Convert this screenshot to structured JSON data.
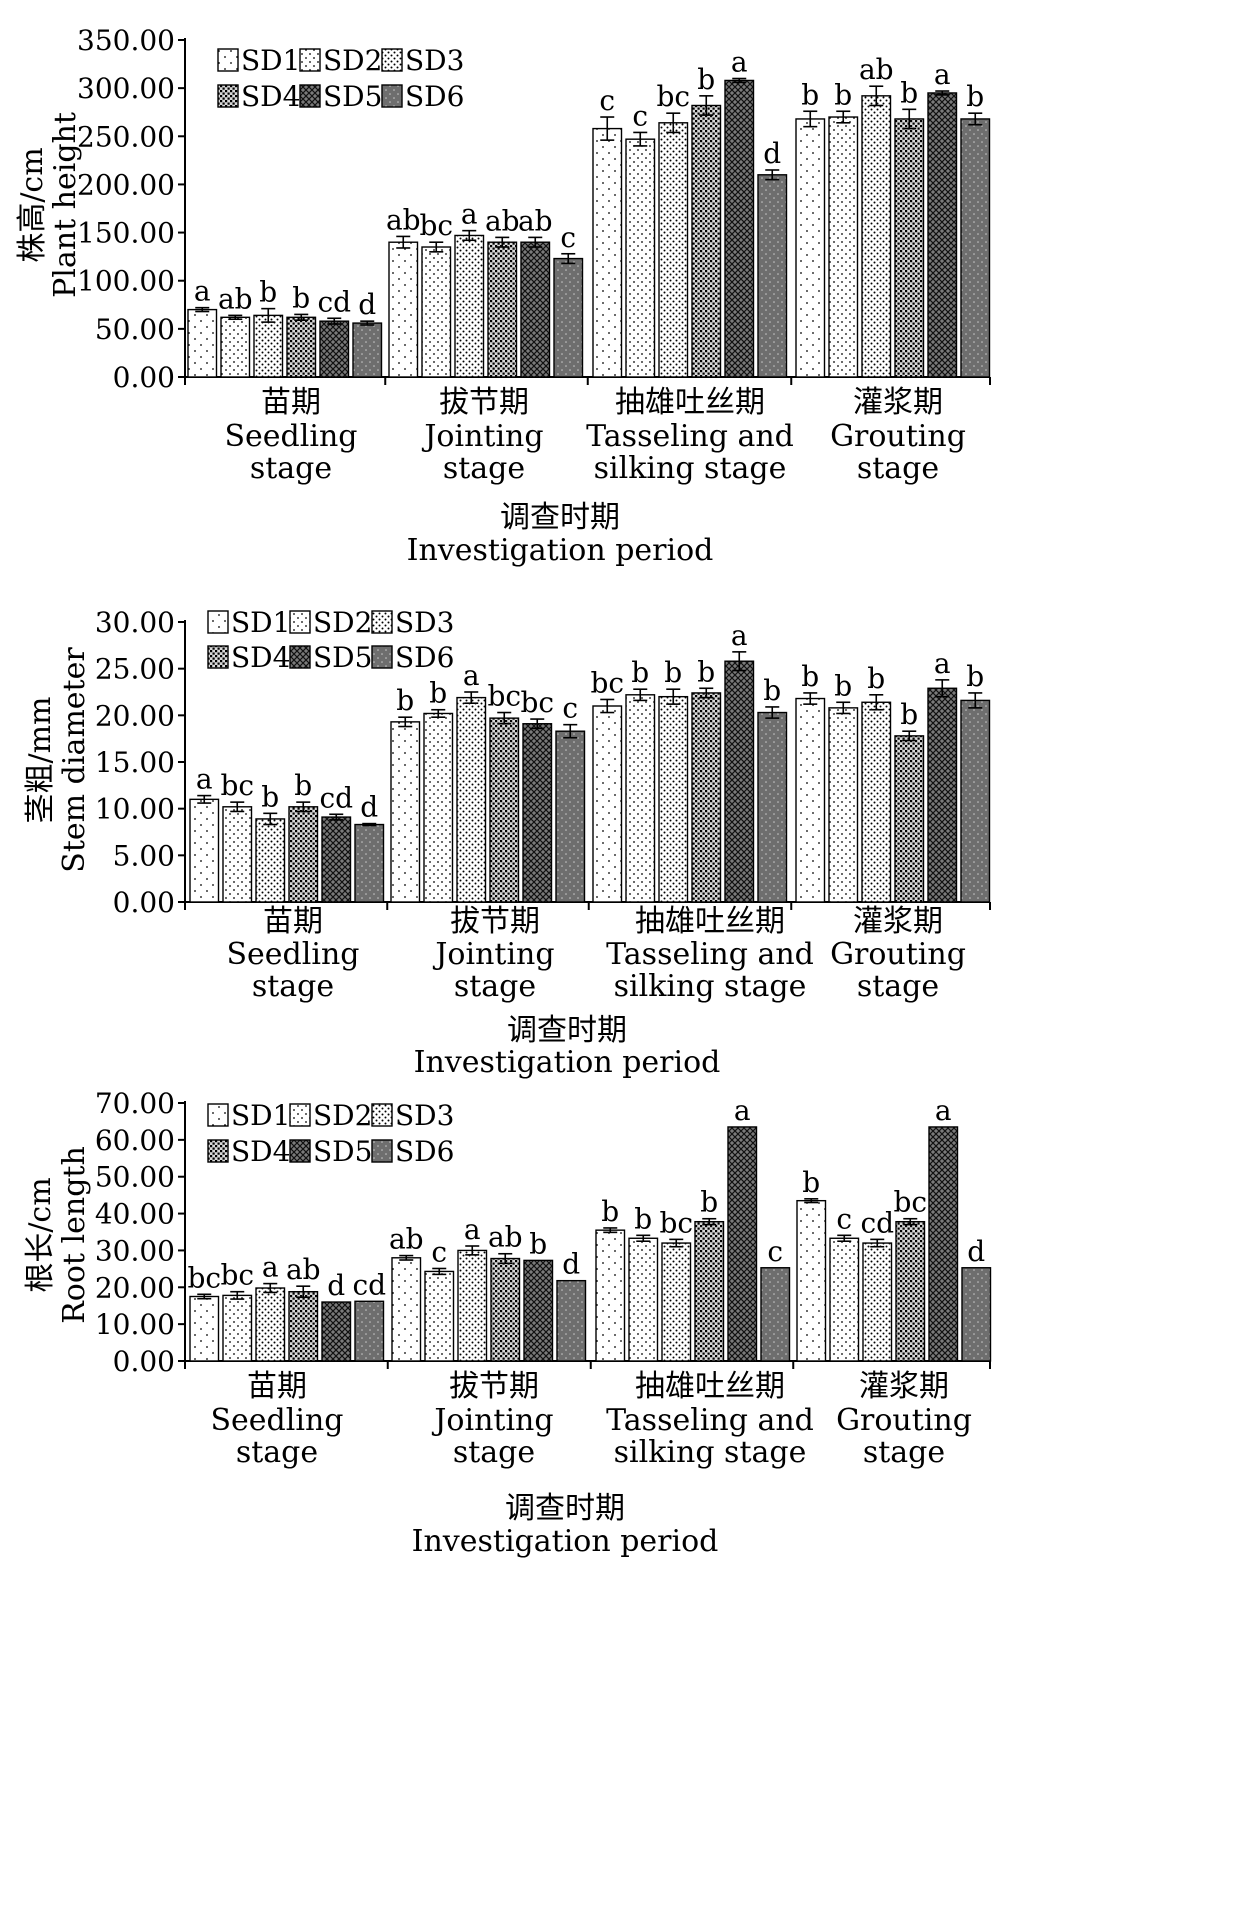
{
  "chart_data": [
    {
      "type": "bar",
      "ylabel_cn": "株高/cm",
      "ylabel_en": "Plant height",
      "xlabel_cn": "调查时期",
      "xlabel_en": "Investigation period",
      "ylim": [
        0,
        350
      ],
      "yticks": [
        "0.00",
        "50.00",
        "100.00",
        "150.00",
        "200.00",
        "250.00",
        "300.00",
        "350.00"
      ],
      "categories": [
        {
          "cn": "苗期",
          "en": [
            "Seedling",
            "stage"
          ]
        },
        {
          "cn": "拔节期",
          "en": [
            "Jointing",
            "stage"
          ]
        },
        {
          "cn": "抽雄吐丝期",
          "en": [
            "Tasseling and",
            "silking stage"
          ]
        },
        {
          "cn": "灌浆期",
          "en": [
            "Grouting",
            "stage"
          ]
        }
      ],
      "series": [
        {
          "name": "SD1",
          "values": [
            70,
            140,
            258,
            268
          ],
          "errors": [
            2,
            6,
            12,
            8
          ],
          "letters": [
            "a",
            "ab",
            "c",
            "b"
          ]
        },
        {
          "name": "SD2",
          "values": [
            62,
            135,
            247,
            270
          ],
          "errors": [
            2,
            5,
            7,
            6
          ],
          "letters": [
            "ab",
            "bc",
            "c",
            "b"
          ]
        },
        {
          "name": "SD3",
          "values": [
            64,
            147,
            264,
            292
          ],
          "errors": [
            7,
            5,
            10,
            10
          ],
          "letters": [
            "b",
            "a",
            "bc",
            "ab"
          ]
        },
        {
          "name": "SD4",
          "values": [
            62,
            140,
            282,
            268
          ],
          "errors": [
            3,
            5,
            10,
            10
          ],
          "letters": [
            "b",
            "ab",
            "b",
            "b"
          ]
        },
        {
          "name": "SD5",
          "values": [
            58,
            140,
            308,
            295
          ],
          "errors": [
            3,
            5,
            2,
            2
          ],
          "letters": [
            "cd",
            "ab",
            "a",
            "a"
          ]
        },
        {
          "name": "SD6",
          "values": [
            56,
            123,
            210,
            268
          ],
          "errors": [
            2,
            5,
            5,
            6
          ],
          "letters": [
            "d",
            "c",
            "d",
            "b"
          ]
        }
      ]
    },
    {
      "type": "bar",
      "ylabel_cn": "茎粗/mm",
      "ylabel_en": "Stem diameter",
      "xlabel_cn": "调查时期",
      "xlabel_en": "Investigation period",
      "ylim": [
        0,
        30
      ],
      "yticks": [
        "0.00",
        "5.00",
        "10.00",
        "15.00",
        "20.00",
        "25.00",
        "30.00"
      ],
      "categories": [
        {
          "cn": "苗期",
          "en": [
            "Seedling",
            "stage"
          ]
        },
        {
          "cn": "拔节期",
          "en": [
            "Jointing",
            "stage"
          ]
        },
        {
          "cn": "抽雄吐丝期",
          "en": [
            "Tasseling and",
            "silking stage"
          ]
        },
        {
          "cn": "灌浆期",
          "en": [
            "Grouting",
            "stage"
          ]
        }
      ],
      "series": [
        {
          "name": "SD1",
          "values": [
            11.0,
            19.3,
            21.0,
            21.8
          ],
          "errors": [
            0.4,
            0.5,
            0.7,
            0.6
          ],
          "letters": [
            "a",
            "b",
            "bc",
            "b"
          ]
        },
        {
          "name": "SD2",
          "values": [
            10.2,
            20.2,
            22.2,
            20.8
          ],
          "errors": [
            0.5,
            0.4,
            0.6,
            0.6
          ],
          "letters": [
            "bc",
            "b",
            "b",
            "b"
          ]
        },
        {
          "name": "SD3",
          "values": [
            8.9,
            21.9,
            22.0,
            21.4
          ],
          "errors": [
            0.6,
            0.6,
            0.8,
            0.8
          ],
          "letters": [
            "b",
            "a",
            "b",
            "b"
          ]
        },
        {
          "name": "SD4",
          "values": [
            10.2,
            19.7,
            22.4,
            17.8
          ],
          "errors": [
            0.5,
            0.6,
            0.5,
            0.5
          ],
          "letters": [
            "b",
            "bc",
            "b",
            "b"
          ]
        },
        {
          "name": "SD5",
          "values": [
            9.1,
            19.1,
            25.8,
            22.9
          ],
          "errors": [
            0.3,
            0.5,
            1.0,
            0.9
          ],
          "letters": [
            "cd",
            "bc",
            "a",
            "a"
          ]
        },
        {
          "name": "SD6",
          "values": [
            8.3,
            18.3,
            20.3,
            21.6
          ],
          "errors": [
            0.1,
            0.7,
            0.6,
            0.8
          ],
          "letters": [
            "d",
            "c",
            "b",
            "b"
          ]
        }
      ]
    },
    {
      "type": "bar",
      "ylabel_cn": "根长/cm",
      "ylabel_en": "Root length",
      "xlabel_cn": "调查时期",
      "xlabel_en": "Investigation period",
      "ylim": [
        0,
        70
      ],
      "yticks": [
        "0.00",
        "10.00",
        "20.00",
        "30.00",
        "40.00",
        "50.00",
        "60.00",
        "70.00"
      ],
      "categories": [
        {
          "cn": "苗期",
          "en": [
            "Seedling",
            "stage"
          ]
        },
        {
          "cn": "拔节期",
          "en": [
            "Jointing",
            "stage"
          ]
        },
        {
          "cn": "抽雄吐丝期",
          "en": [
            "Tasseling and",
            "silking stage"
          ]
        },
        {
          "cn": "灌浆期",
          "en": [
            "Grouting",
            "stage"
          ]
        }
      ],
      "series": [
        {
          "name": "SD1",
          "values": [
            17.5,
            28.0,
            35.5,
            43.5
          ],
          "errors": [
            0.6,
            0.6,
            0.6,
            0.5
          ],
          "letters": [
            "bc",
            "ab",
            "b",
            "b"
          ]
        },
        {
          "name": "SD2",
          "values": [
            17.8,
            24.3,
            33.3,
            33.3
          ],
          "errors": [
            1.0,
            0.8,
            0.8,
            0.8
          ],
          "letters": [
            "bc",
            "c",
            "b",
            "c"
          ]
        },
        {
          "name": "SD3",
          "values": [
            19.8,
            30.0,
            32.0,
            32.0
          ],
          "errors": [
            1.2,
            1.2,
            1.0,
            1.0
          ],
          "letters": [
            "a",
            "a",
            "bc",
            "cd"
          ]
        },
        {
          "name": "SD4",
          "values": [
            18.8,
            27.8,
            37.8,
            37.8
          ],
          "errors": [
            1.5,
            1.3,
            0.8,
            0.8
          ],
          "letters": [
            "ab",
            "ab",
            "b",
            "bc"
          ]
        },
        {
          "name": "SD5",
          "values": [
            16.0,
            27.3,
            63.5,
            63.5
          ],
          "errors": [
            0,
            0,
            0,
            0
          ],
          "letters": [
            "d",
            "b",
            "a",
            "a"
          ]
        },
        {
          "name": "SD6",
          "values": [
            16.2,
            21.8,
            25.3,
            25.3
          ],
          "errors": [
            0,
            0,
            0,
            0
          ],
          "letters": [
            "cd",
            "d",
            "c",
            "d"
          ]
        }
      ]
    }
  ]
}
